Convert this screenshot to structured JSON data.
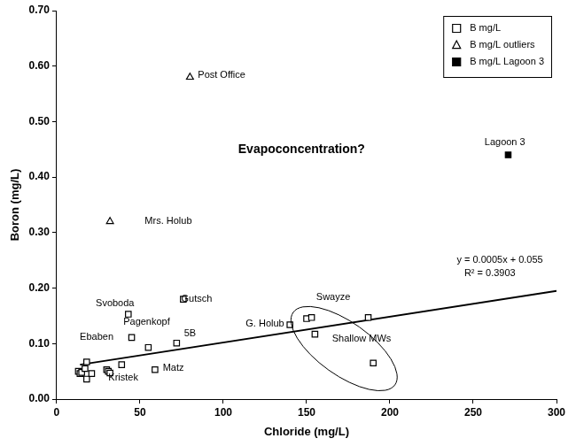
{
  "chart_data": {
    "type": "scatter",
    "x_label": "Chloride (mg/L)",
    "y_label": "Boron (mg/L)",
    "xlim": [
      0,
      300
    ],
    "xticks": [
      0,
      50,
      100,
      150,
      200,
      250,
      300
    ],
    "ylim": [
      0,
      0.7
    ],
    "yticks": [
      {
        "value": 0,
        "label": "0.00"
      },
      {
        "value": 0.1,
        "label": "0.10"
      },
      {
        "value": 0.2,
        "label": "0.20"
      },
      {
        "value": 0.3,
        "label": "0.30"
      },
      {
        "value": 0.4,
        "label": "0.40"
      },
      {
        "value": 0.5,
        "label": "0.50"
      },
      {
        "value": 0.6,
        "label": "0.60"
      },
      {
        "value": 0.7,
        "label": "0.70"
      }
    ],
    "grid": false,
    "legend": "upper right",
    "series": [
      {
        "name": "B mg/L",
        "color": "#000000",
        "marker": "open_square",
        "values": [
          [
            13,
            0.05
          ],
          [
            14,
            0.046
          ],
          [
            15,
            0.048
          ],
          [
            17,
            0.055
          ],
          [
            18,
            0.067
          ],
          [
            18,
            0.036
          ],
          [
            21,
            0.046
          ],
          [
            30,
            0.053
          ],
          [
            31,
            0.05
          ],
          [
            32,
            0.047
          ],
          [
            39,
            0.062
          ],
          [
            43,
            0.153
          ],
          [
            45,
            0.111
          ],
          [
            55,
            0.093
          ],
          [
            59,
            0.053
          ],
          [
            72,
            0.101
          ],
          [
            76,
            0.18
          ],
          [
            140,
            0.134
          ],
          [
            150,
            0.145
          ],
          [
            153,
            0.147
          ],
          [
            155,
            0.117
          ],
          [
            187,
            0.147
          ],
          [
            190,
            0.065
          ]
        ]
      },
      {
        "name": "B mg/L outliers",
        "color": "#000000",
        "marker": "open_triangle",
        "values": [
          [
            80,
            0.58
          ],
          [
            32,
            0.32
          ]
        ]
      },
      {
        "name": "B mg/L Lagoon 3",
        "color": "#000000",
        "marker": "filled_square",
        "values": [
          [
            271,
            0.44
          ]
        ]
      },
      {
        "type": "line",
        "color": "#000000",
        "line_style": "solid",
        "values": [
          [
            14,
            0.062
          ],
          [
            300,
            0.195
          ]
        ]
      }
    ],
    "annotations": [
      {
        "text": "Evapoconcentration?",
        "x": 147,
        "y": 0.449
      },
      {
        "text": "Post Office",
        "x": 99,
        "y": 0.584
      },
      {
        "text": "Mrs. Holub",
        "x": 67,
        "y": 0.321
      },
      {
        "text": "Lagoon 3",
        "x": 269,
        "y": 0.462
      },
      {
        "text": "y = 0.0005x + 0.055",
        "x": 266,
        "y": 0.25
      },
      {
        "text": "R² = 0.3903",
        "x": 260,
        "y": 0.226
      },
      {
        "text": "Svoboda",
        "x": 35,
        "y": 0.173
      },
      {
        "text": "Pagenkopf",
        "x": 54,
        "y": 0.138
      },
      {
        "text": "Ebaben",
        "x": 24,
        "y": 0.112
      },
      {
        "text": "Gutsch",
        "x": 84,
        "y": 0.18
      },
      {
        "text": "5B",
        "x": 80,
        "y": 0.118
      },
      {
        "text": "Swayze",
        "x": 166,
        "y": 0.183
      },
      {
        "text": "G. Holub",
        "x": 125,
        "y": 0.135
      },
      {
        "text": "Shallow MWs",
        "x": 183,
        "y": 0.109
      },
      {
        "text": "Kristek",
        "x": 40,
        "y": 0.038
      },
      {
        "text": "Matz",
        "x": 70,
        "y": 0.056
      }
    ]
  }
}
